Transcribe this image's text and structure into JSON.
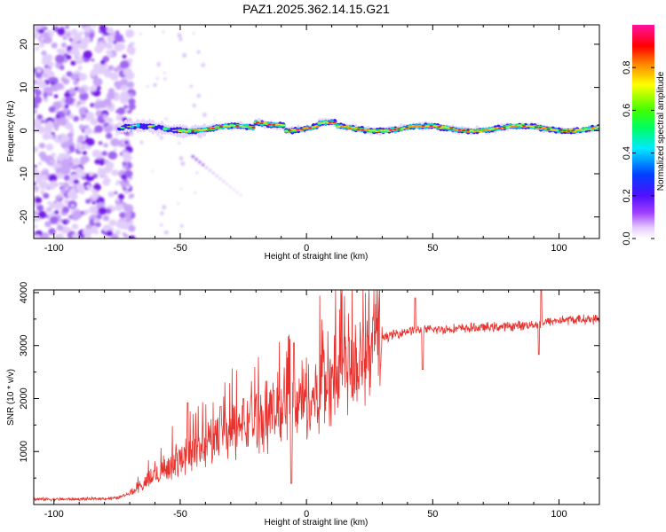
{
  "figure": {
    "title": "PAZ1.2025.362.14.15.G21"
  },
  "chart_data": [
    {
      "type": "heatmap",
      "title": "PAZ1.2025.362.14.15.G21",
      "xlabel": "Height of straight line (km)",
      "ylabel": "Frequency (Hz)",
      "xlim": [
        -108,
        116
      ],
      "ylim": [
        -25,
        24.5
      ],
      "xticks": [
        -100,
        -50,
        0,
        50,
        100
      ],
      "yticks": [
        -20,
        -10,
        0,
        10,
        20
      ],
      "colorscale": "rainbow (white-violet-blue-cyan-green-yellow-red-magenta)",
      "features": {
        "noise_region_x": [
          -108,
          -69
        ],
        "sparse_noise_region_x": [
          -69,
          -40
        ],
        "ridge_frequency_hz": 0.5,
        "ridge_start_x": -74,
        "ridge_strong_from_x": -50,
        "sidelobe_line_from": [
          -45,
          -6
        ],
        "sidelobe_line_to": [
          -26,
          -15
        ]
      }
    },
    {
      "type": "colorbar",
      "label": "Normalized spectral amplitude",
      "range": [
        0,
        1
      ],
      "ticks": [
        0.0,
        0.2,
        0.4,
        0.6,
        0.8
      ],
      "tick_labels": [
        "0.0",
        "0.2",
        "0.4",
        "0.6",
        "0.8"
      ]
    },
    {
      "type": "line",
      "xlabel": "Height of straight line (km)",
      "ylabel": "SNR (10 * v/v)",
      "xlim": [
        -108,
        116
      ],
      "ylim": [
        0,
        4050
      ],
      "xticks": [
        -100,
        -50,
        0,
        50,
        100
      ],
      "yticks": [
        1000,
        2000,
        3000,
        4000
      ],
      "color": "#e8322e",
      "trend": {
        "x": [
          -108,
          -90,
          -75,
          -68,
          -60,
          -50,
          -40,
          -30,
          -20,
          -10,
          0,
          10,
          20,
          30,
          40,
          50,
          60,
          70,
          80,
          90,
          100,
          116
        ],
        "y": [
          100,
          100,
          120,
          250,
          550,
          850,
          1150,
          1350,
          1600,
          1800,
          1950,
          2350,
          2800,
          3150,
          3280,
          3300,
          3320,
          3340,
          3360,
          3400,
          3480,
          3500
        ]
      },
      "peaks": [
        {
          "x": -47,
          "y": 1920
        },
        {
          "x": -34,
          "y": 1850
        },
        {
          "x": -25,
          "y": 2000
        },
        {
          "x": -13,
          "y": 2150
        },
        {
          "x": -5,
          "y": 3050
        },
        {
          "x": 43,
          "y": 3900
        },
        {
          "x": 93,
          "y": 4050
        }
      ],
      "dips": [
        {
          "x": -6,
          "y": 400
        },
        {
          "x": 46,
          "y": 2550
        },
        {
          "x": 92,
          "y": 2830
        }
      ]
    }
  ]
}
